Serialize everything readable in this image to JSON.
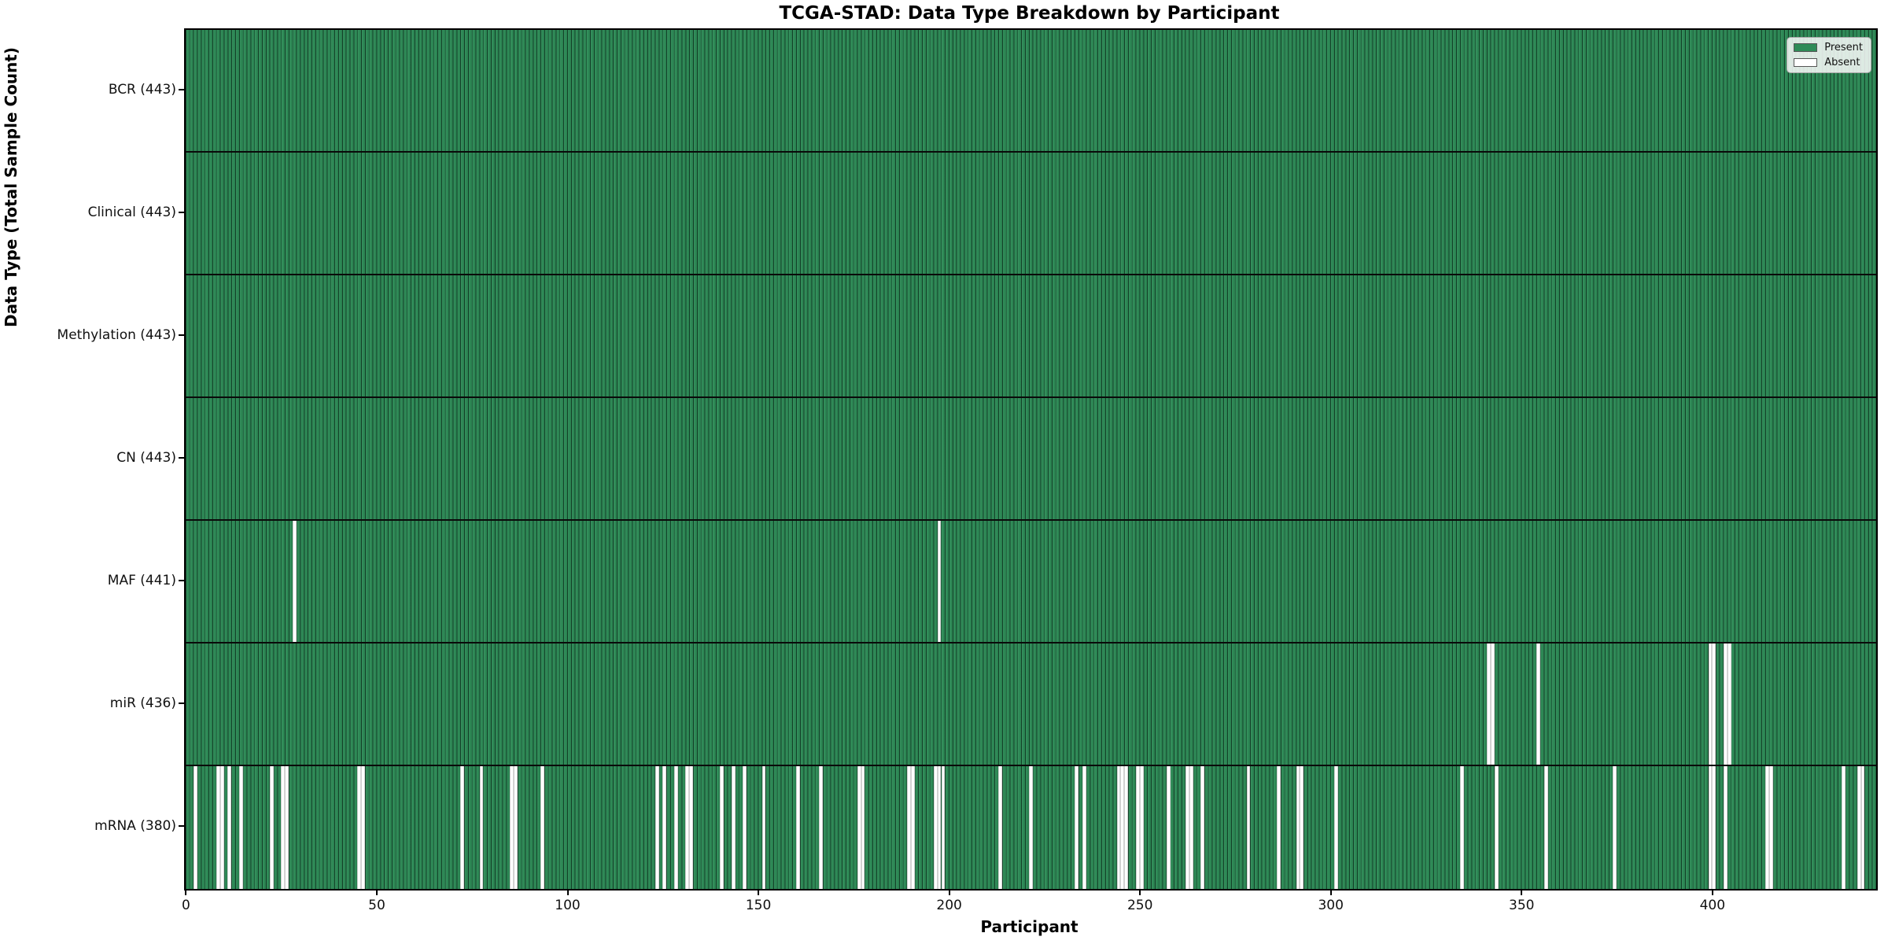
{
  "chart_data": {
    "type": "heatmap",
    "title": "TCGA-STAD: Data Type Breakdown by Participant",
    "xlabel": "Participant",
    "ylabel": "Data Type (Total Sample Count)",
    "n_participants": 443,
    "x_ticks": [
      0,
      50,
      100,
      150,
      200,
      250,
      300,
      350,
      400
    ],
    "grid": false,
    "legend": {
      "position": "upper-right",
      "entries": [
        {
          "label": "Present",
          "color": "#2e8b57"
        },
        {
          "label": "Absent",
          "color": "#ffffff"
        }
      ]
    },
    "colors": {
      "present_fill": "#2e8b57",
      "bar_edge": "#16402c",
      "absent_fill": "#ffffff",
      "axis": "#000000"
    },
    "rows": [
      {
        "key": "bcr",
        "data_type": "BCR",
        "label": "BCR (443)",
        "present_count": 443,
        "absent_participants": []
      },
      {
        "key": "clinical",
        "data_type": "Clinical",
        "label": "Clinical (443)",
        "present_count": 443,
        "absent_participants": []
      },
      {
        "key": "methylation",
        "data_type": "Methylation",
        "label": "Methylation (443)",
        "present_count": 443,
        "absent_participants": []
      },
      {
        "key": "cn",
        "data_type": "CN",
        "label": "CN (443)",
        "present_count": 443,
        "absent_participants": []
      },
      {
        "key": "maf",
        "data_type": "MAF",
        "label": "MAF (441)",
        "present_count": 441,
        "absent_participants": [
          28,
          197
        ]
      },
      {
        "key": "mir",
        "data_type": "miR",
        "label": "miR (436)",
        "present_count": 436,
        "absent_participants": [
          341,
          342,
          354,
          399,
          400,
          403,
          404
        ]
      },
      {
        "key": "mrna",
        "data_type": "mRNA",
        "label": "mRNA (380)",
        "present_count": 380,
        "absent_participants": [
          2,
          8,
          9,
          11,
          14,
          22,
          25,
          26,
          45,
          46,
          72,
          77,
          85,
          86,
          93,
          123,
          125,
          128,
          131,
          132,
          140,
          143,
          146,
          151,
          160,
          166,
          176,
          177,
          189,
          190,
          196,
          197,
          198,
          213,
          221,
          233,
          235,
          244,
          245,
          246,
          249,
          250,
          257,
          262,
          263,
          266,
          278,
          286,
          291,
          292,
          301,
          334,
          343,
          356,
          374,
          399,
          400,
          403,
          414,
          415,
          434,
          438,
          439
        ]
      }
    ]
  }
}
